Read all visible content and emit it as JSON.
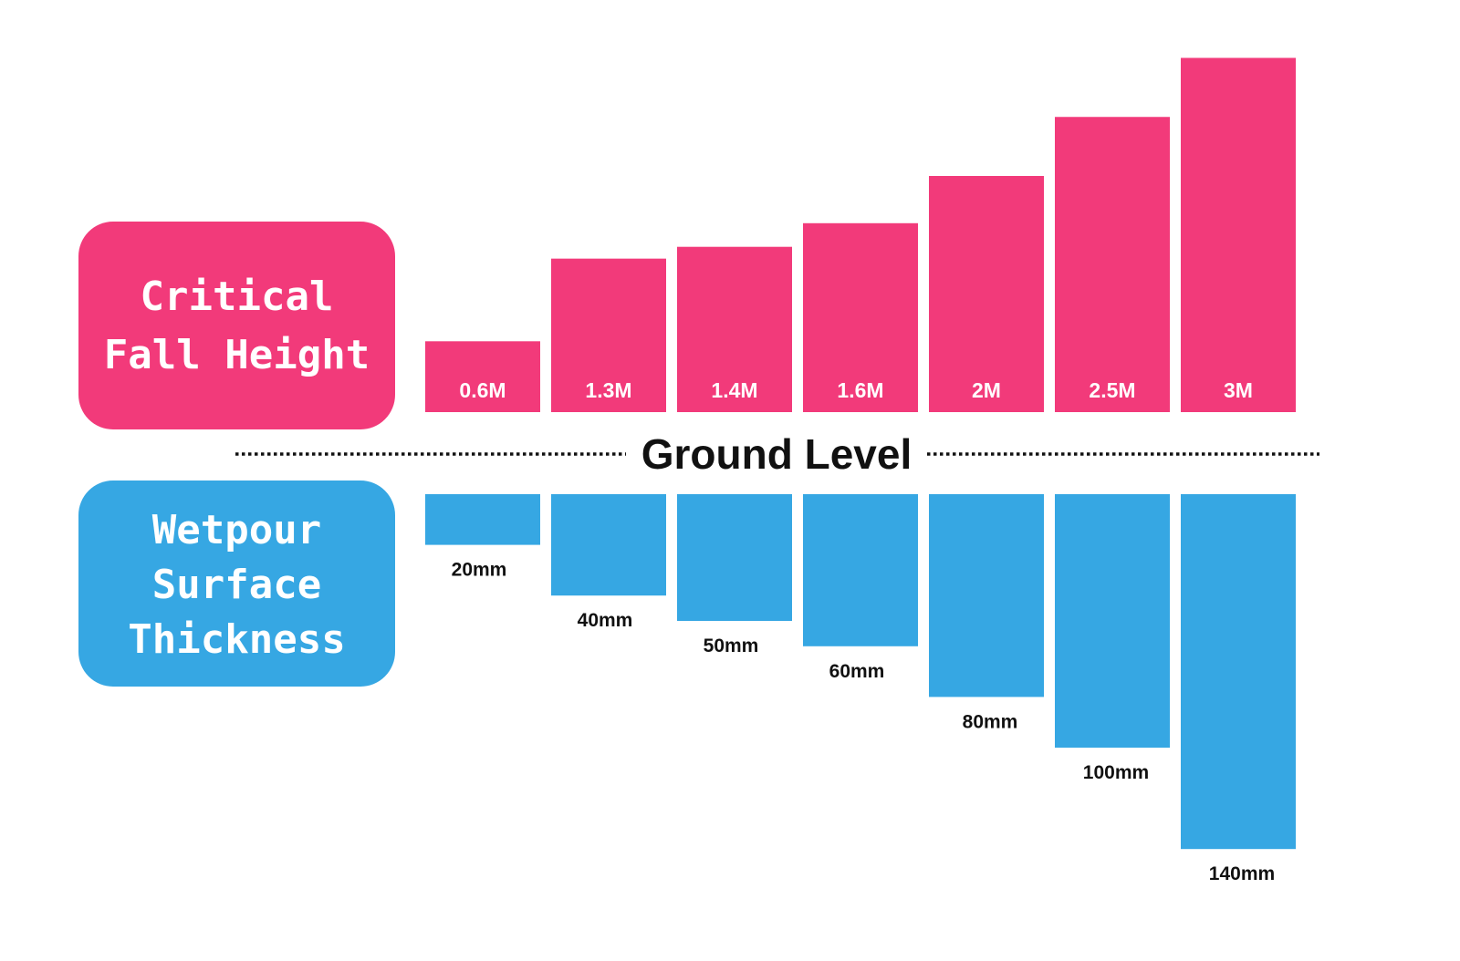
{
  "colors": {
    "top": "#f23a7a",
    "bottom": "#36a7e3",
    "baseline": "#111111",
    "bar_label_top": "#ffffff",
    "bar_label_bottom": "#111111"
  },
  "chart_data": {
    "type": "bar",
    "top_box_lines": [
      "Critical",
      "Fall Height"
    ],
    "bottom_box_lines": [
      "Wetpour",
      "Surface",
      "Thickness"
    ],
    "baseline_label": "Ground Level",
    "series": [
      {
        "name": "Critical Fall Height",
        "unit": "M",
        "values": [
          0.6,
          1.3,
          1.4,
          1.6,
          2,
          2.5,
          3
        ],
        "labels": [
          "0.6M",
          "1.3M",
          "1.4M",
          "1.6M",
          "2M",
          "2.5M",
          "3M"
        ]
      },
      {
        "name": "Wetpour Surface Thickness",
        "unit": "mm",
        "values": [
          20,
          40,
          50,
          60,
          80,
          100,
          140
        ],
        "labels": [
          "20mm",
          "40mm",
          "50mm",
          "60mm",
          "80mm",
          "100mm",
          "140mm"
        ]
      }
    ]
  }
}
